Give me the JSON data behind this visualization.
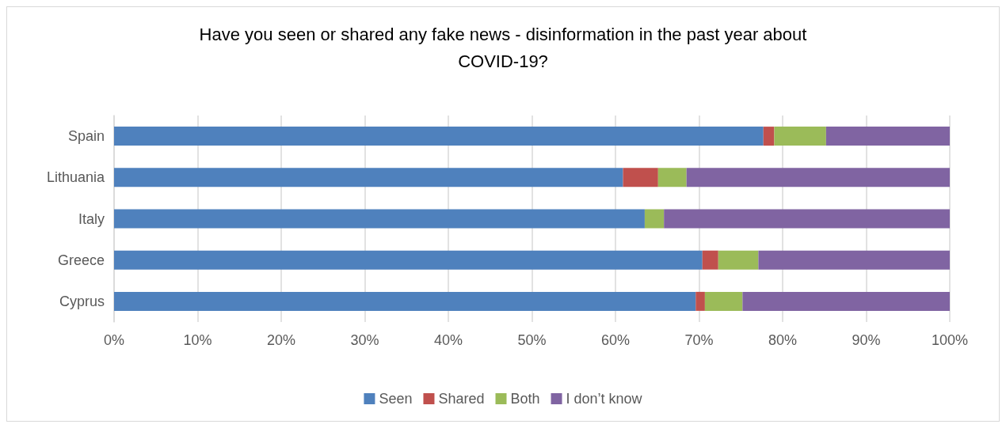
{
  "chart_data": {
    "type": "bar",
    "orientation": "horizontal",
    "stacked": true,
    "title": "Have you seen or shared any fake news - disinformation in the past year about\nCOVID-19?",
    "categories": [
      "Spain",
      "Lithuania",
      "Italy",
      "Greece",
      "Cyprus"
    ],
    "series": [
      {
        "name": "Seen",
        "color": "#4f81bd",
        "values": [
          77.7,
          60.9,
          63.5,
          70.4,
          69.6
        ]
      },
      {
        "name": "Shared",
        "color": "#c0504d",
        "values": [
          1.3,
          4.2,
          0,
          1.9,
          1.1
        ]
      },
      {
        "name": "Both",
        "color": "#9bbb59",
        "values": [
          6.2,
          3.4,
          2.3,
          4.8,
          4.5
        ]
      },
      {
        "name": "I don’t know",
        "color": "#8064a2",
        "values": [
          14.8,
          31.5,
          34.2,
          22.9,
          24.8
        ]
      }
    ],
    "xlim": [
      0,
      100
    ],
    "xticks": [
      {
        "value": 0,
        "label": "0%"
      },
      {
        "value": 10,
        "label": "10%"
      },
      {
        "value": 20,
        "label": "20%"
      },
      {
        "value": 30,
        "label": "30%"
      },
      {
        "value": 40,
        "label": "40%"
      },
      {
        "value": 50,
        "label": "50%"
      },
      {
        "value": 60,
        "label": "60%"
      },
      {
        "value": 70,
        "label": "70%"
      },
      {
        "value": 80,
        "label": "80%"
      },
      {
        "value": 90,
        "label": "90%"
      },
      {
        "value": 100,
        "label": "100%"
      }
    ],
    "grid": "x",
    "legend": "bottom"
  }
}
